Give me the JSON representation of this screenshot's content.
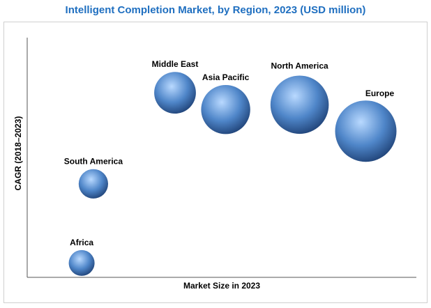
{
  "chart_data": {
    "type": "scatter",
    "title": "Intelligent Completion Market, by Region, 2023 (USD million)",
    "xlabel": "Market Size in 2023",
    "ylabel": "CAGR (2018–2023)",
    "grid": false,
    "legend": "none",
    "series": [
      {
        "label": "Europe",
        "x": 0.87,
        "y": 0.61,
        "size": 1.0
      },
      {
        "label": "North America",
        "x": 0.7,
        "y": 0.72,
        "size": 0.95
      },
      {
        "label": "Asia Pacific",
        "x": 0.51,
        "y": 0.7,
        "size": 0.8
      },
      {
        "label": "Middle East",
        "x": 0.38,
        "y": 0.77,
        "size": 0.68
      },
      {
        "label": "South America",
        "x": 0.17,
        "y": 0.39,
        "size": 0.48
      },
      {
        "label": "Africa",
        "x": 0.14,
        "y": 0.06,
        "size": 0.42
      }
    ],
    "colors": {
      "title": "#1f6fc0",
      "bubble_light": "#b9d9ff",
      "bubble_mid": "#4f86c9",
      "bubble_dark": "#1d3f73"
    }
  }
}
